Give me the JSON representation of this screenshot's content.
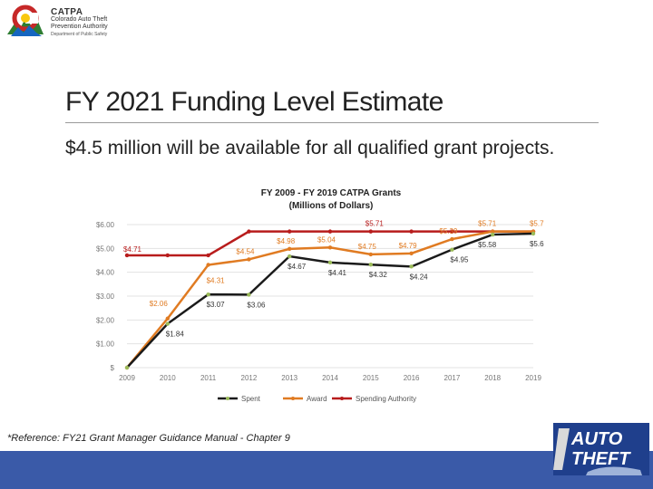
{
  "header": {
    "logo_title": "CATPA",
    "logo_line1": "Colorado Auto Theft",
    "logo_line2": "Prevention Authority",
    "logo_line3": "Department of Public Safety"
  },
  "slide": {
    "title": "FY 2021 Funding Level Estimate",
    "bullet": "$4.5 million will be available for all qualified grant projects.",
    "reference": "*Reference:  FY21 Grant Manager Guidance Manual - Chapter 9"
  },
  "auto_logo": {
    "line1": "AUTO",
    "line2": "THEFT"
  },
  "chart_data": {
    "type": "line",
    "title": "FY 2009 - FY 2019 CATPA Grants",
    "subtitle": "(Millions of Dollars)",
    "xlabel": "",
    "ylabel": "",
    "x": [
      "2009",
      "2010",
      "2011",
      "2012",
      "2013",
      "2014",
      "2015",
      "2016",
      "2017",
      "2018",
      "2019"
    ],
    "ylim": [
      0,
      6
    ],
    "yticks": [
      0,
      1,
      2,
      3,
      4,
      5,
      6
    ],
    "ytick_labels": [
      "$",
      "$1.00",
      "$2.00",
      "$3.00",
      "$4.00",
      "$5.00",
      "$6.00"
    ],
    "grid": true,
    "legend": "bottom",
    "series": [
      {
        "name": "Spent",
        "color": "#1a1a1a",
        "marker_color": "#9bbb59",
        "values": [
          0.0,
          1.84,
          3.07,
          3.06,
          4.67,
          4.41,
          4.32,
          4.24,
          4.95,
          5.58,
          5.62
        ],
        "labels": [
          "",
          "$1.84",
          "$3.07",
          "$3.06",
          "$4.67",
          "$4.41",
          "$4.32",
          "$4.24",
          "$4.95",
          "$5.58",
          "$5.62"
        ]
      },
      {
        "name": "Award",
        "color": "#e07b22",
        "marker_color": "#e07b22",
        "values": [
          0.0,
          2.06,
          4.31,
          4.54,
          4.98,
          5.04,
          4.75,
          4.79,
          5.39,
          5.71,
          5.71
        ],
        "labels": [
          "",
          "$2.06",
          "$4.31",
          "$4.54",
          "$4.98",
          "$5.04",
          "$4.75",
          "$4.79",
          "$5.39",
          "$5.71",
          "$5.71"
        ]
      },
      {
        "name": "Spending Authority",
        "color": "#b81c1c",
        "marker_color": "#b81c1c",
        "values": [
          4.71,
          4.71,
          4.71,
          5.71,
          5.71,
          5.71,
          5.71,
          5.71,
          5.71,
          5.71,
          5.71
        ],
        "labels": [
          "$4.71",
          "",
          "",
          "",
          "",
          "",
          "$5.71",
          "",
          "",
          "",
          ""
        ]
      }
    ]
  }
}
